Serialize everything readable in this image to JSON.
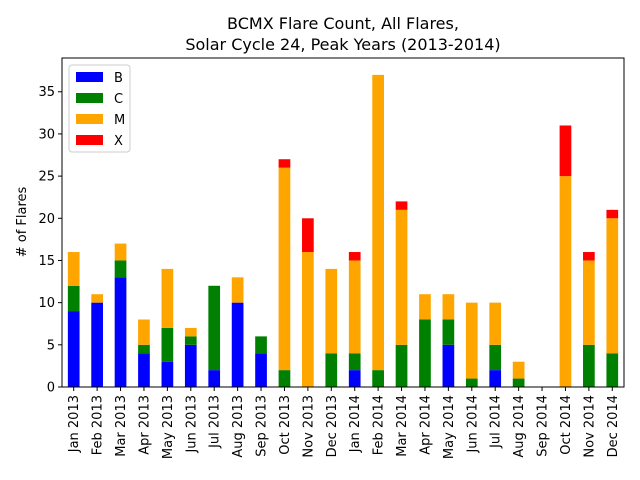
{
  "chart_data": {
    "type": "bar",
    "stacked": true,
    "title": [
      "BCMX Flare Count, All Flares,",
      "Solar Cycle 24, Peak Years (2013-2014)"
    ],
    "xlabel": "",
    "ylabel": "# of Flares",
    "ylim": [
      0,
      39
    ],
    "yticks": [
      0,
      5,
      10,
      15,
      20,
      25,
      30,
      35
    ],
    "grid": false,
    "legend_position": "top-left",
    "categories": [
      "Jan 2013",
      "Feb 2013",
      "Mar 2013",
      "Apr 2013",
      "May 2013",
      "Jun 2013",
      "Jul 2013",
      "Aug 2013",
      "Sep 2013",
      "Oct 2013",
      "Nov 2013",
      "Dec 2013",
      "Jan 2014",
      "Feb 2014",
      "Mar 2014",
      "Apr 2014",
      "May 2014",
      "Jun 2014",
      "Jul 2014",
      "Aug 2014",
      "Sep 2014",
      "Oct 2014",
      "Nov 2014",
      "Dec 2014"
    ],
    "series": [
      {
        "name": "B",
        "color": "#0000ff",
        "values": [
          9,
          10,
          13,
          4,
          3,
          5,
          2,
          10,
          4,
          0,
          0,
          0,
          2,
          0,
          0,
          0,
          5,
          0,
          2,
          0,
          0,
          0,
          0,
          0
        ]
      },
      {
        "name": "C",
        "color": "#008000",
        "values": [
          3,
          0,
          2,
          1,
          4,
          1,
          10,
          0,
          2,
          2,
          0,
          4,
          2,
          2,
          5,
          8,
          3,
          1,
          3,
          1,
          0,
          0,
          5,
          4
        ]
      },
      {
        "name": "M",
        "color": "#ffa500",
        "values": [
          4,
          1,
          2,
          3,
          7,
          1,
          0,
          3,
          0,
          24,
          16,
          10,
          11,
          35,
          16,
          3,
          3,
          9,
          5,
          2,
          0,
          25,
          10,
          16
        ]
      },
      {
        "name": "X",
        "color": "#ff0000",
        "values": [
          0,
          0,
          0,
          0,
          0,
          0,
          0,
          0,
          0,
          1,
          4,
          0,
          1,
          0,
          1,
          0,
          0,
          0,
          0,
          0,
          0,
          6,
          1,
          1
        ]
      }
    ]
  }
}
